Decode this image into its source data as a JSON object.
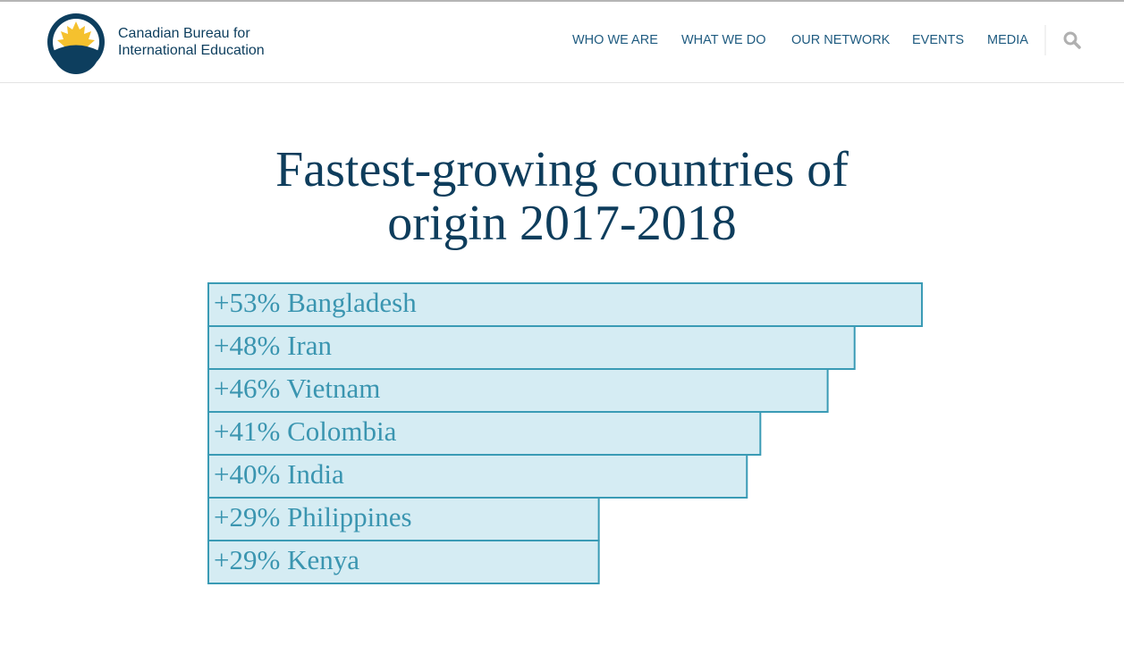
{
  "header": {
    "org_name": [
      "Canadian Bureau for",
      "International Education"
    ],
    "nav": [
      "WHO WE ARE",
      "WHAT WE DO",
      "OUR NETWORK",
      "EVENTS",
      "MEDIA"
    ]
  },
  "chart_data": {
    "type": "bar",
    "orientation": "horizontal",
    "title": "Fastest-growing countries of origin 2017-2018",
    "categories": [
      "Bangladesh",
      "Iran",
      "Vietnam",
      "Colombia",
      "India",
      "Philippines",
      "Kenya"
    ],
    "values": [
      53,
      48,
      46,
      41,
      40,
      29,
      29
    ],
    "value_labels": [
      "+53%",
      "+48%",
      "+46%",
      "+41%",
      "+40%",
      "+29%",
      "+29%"
    ],
    "color": "#d5ecf3",
    "edge_color": "#3a9bb5"
  }
}
